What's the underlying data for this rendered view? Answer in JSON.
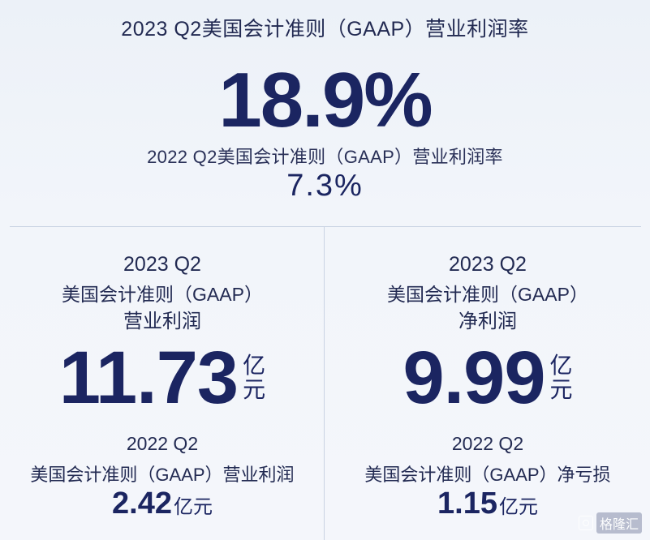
{
  "top": {
    "title": "2023 Q2美国会计准则（GAAP）营业利润率",
    "value": "18.9%",
    "prev_title": "2022 Q2美国会计准则（GAAP）营业利润率",
    "prev_value": "7.3%"
  },
  "left": {
    "year": "2023 Q2",
    "standard": "美国会计准则（GAAP）",
    "metric": "营业利润",
    "value": "11.73",
    "unit_1": "亿",
    "unit_2": "元",
    "prev_year": "2022 Q2",
    "prev_label": "美国会计准则（GAAP）营业利润",
    "prev_value": "2.42",
    "prev_unit": "亿元"
  },
  "right": {
    "year": "2023 Q2",
    "standard": "美国会计准则（GAAP）",
    "metric": "净利润",
    "value": "9.99",
    "unit_1": "亿",
    "unit_2": "元",
    "prev_year": "2022 Q2",
    "prev_label": "美国会计准则（GAAP）净亏损",
    "prev_value": "1.15",
    "prev_unit": "亿元"
  },
  "watermark": {
    "text": "格隆汇",
    "icon": "logo-icon"
  },
  "colors": {
    "primary": "#1b2561",
    "text": "#222a52",
    "divider": "#c9d3e3",
    "background": "#eef2f8"
  }
}
